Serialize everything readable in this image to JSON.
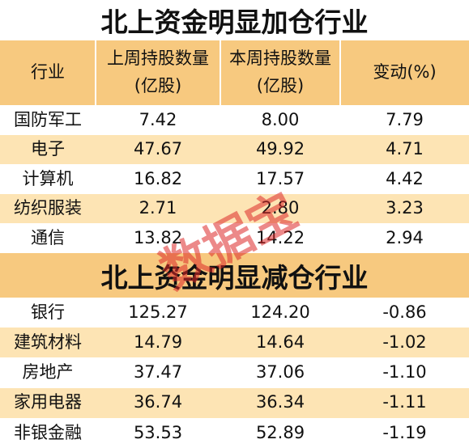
{
  "increase": {
    "title": "北上资金明显加仓行业",
    "headers": [
      "行业",
      "上周持股数量(亿股)",
      "本周持股数量(亿股)",
      "变动(%)"
    ],
    "rows": [
      [
        "国防军工",
        "7.42",
        "8.00",
        "7.79"
      ],
      [
        "电子",
        "47.67",
        "49.92",
        "4.71"
      ],
      [
        "计算机",
        "16.82",
        "17.57",
        "4.42"
      ],
      [
        "纺织服装",
        "2.71",
        "2.80",
        "3.23"
      ],
      [
        "通信",
        "13.82",
        "14.22",
        "2.94"
      ]
    ]
  },
  "decrease": {
    "title": "北上资金明显减仓行业",
    "rows": [
      [
        "银行",
        "125.27",
        "124.20",
        "-0.86"
      ],
      [
        "建筑材料",
        "14.79",
        "14.64",
        "-1.02"
      ],
      [
        "房地产",
        "37.47",
        "37.06",
        "-1.10"
      ],
      [
        "家用电器",
        "36.74",
        "36.34",
        "-1.11"
      ],
      [
        "非银金融",
        "53.53",
        "52.89",
        "-1.19"
      ]
    ]
  },
  "watermark": "数据宝"
}
